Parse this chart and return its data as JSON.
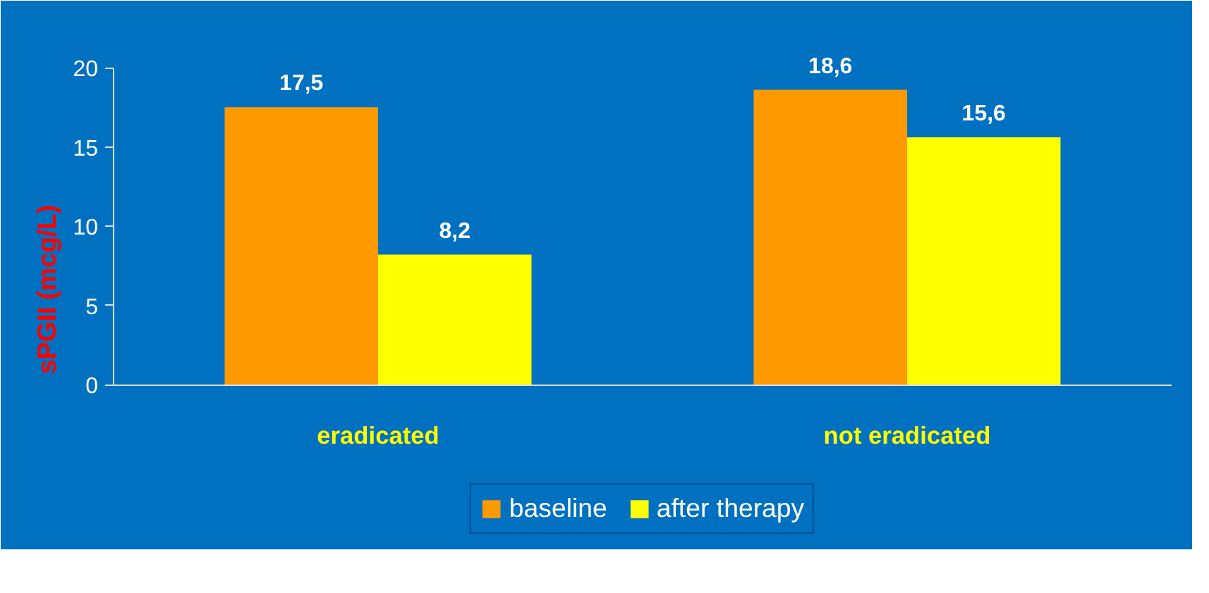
{
  "chart_data": {
    "type": "bar",
    "ylabel": "sPGII (mcg/L)",
    "categories": [
      "eradicated",
      "not eradicated"
    ],
    "series": [
      {
        "name": "baseline",
        "color": "#ff9900",
        "values": [
          17.5,
          18.6
        ],
        "value_labels": [
          "17,5",
          "18,6"
        ]
      },
      {
        "name": "after therapy",
        "color": "#ffff00",
        "values": [
          8.2,
          15.6
        ],
        "value_labels": [
          "8,2",
          "15,6"
        ]
      }
    ],
    "ylim": [
      0,
      20
    ],
    "yticks": [
      0,
      5,
      10,
      15,
      20
    ],
    "grid": false,
    "legend": "bottom"
  }
}
